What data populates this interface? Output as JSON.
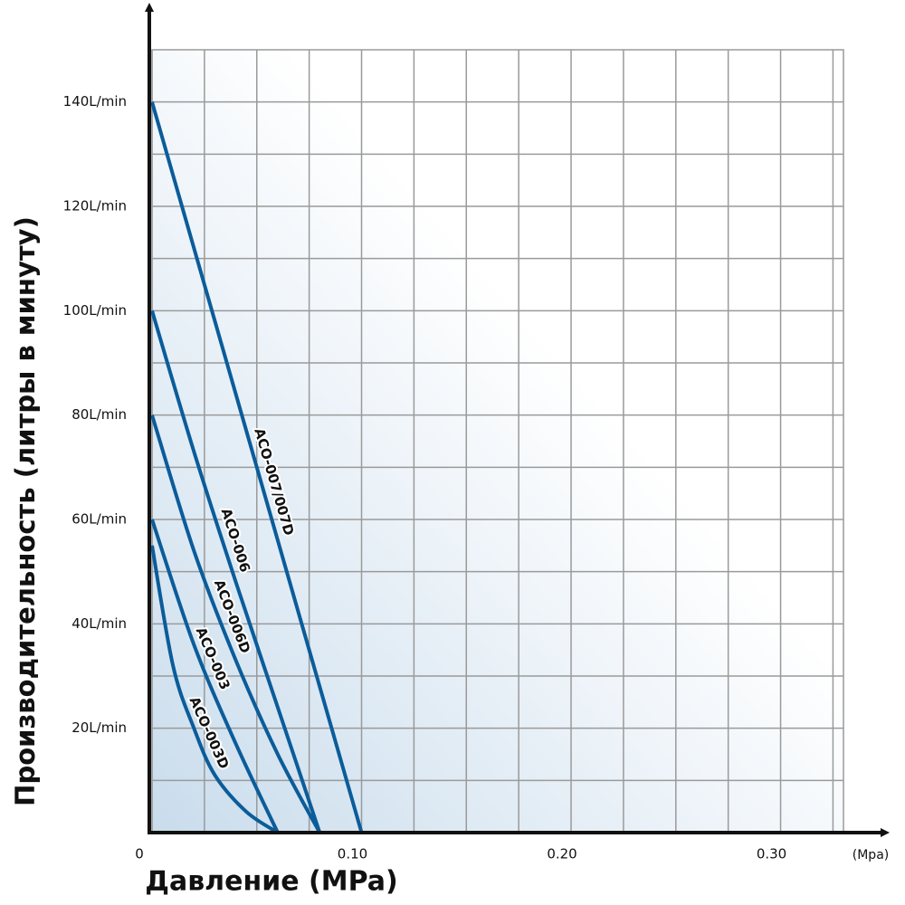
{
  "chart_data": {
    "type": "line",
    "x_label": "Давление (MPa)",
    "y_label": "Производительность (литры в минуту)",
    "x_unit": "(Mpa)",
    "xlim": [
      0,
      0.33
    ],
    "ylim": [
      0,
      150
    ],
    "xticks": [
      0,
      {
        "value": 0.1,
        "label": "0.10"
      },
      {
        "value": 0.2,
        "label": "0.20"
      },
      {
        "value": 0.3,
        "label": "0.30"
      }
    ],
    "yticks": [
      {
        "value": 20,
        "label": "20L/min"
      },
      {
        "value": 40,
        "label": "40L/min"
      },
      {
        "value": 60,
        "label": "60L/min"
      },
      {
        "value": 80,
        "label": "80L/min"
      },
      {
        "value": 100,
        "label": "100L/min"
      },
      {
        "value": 120,
        "label": "120L/min"
      },
      {
        "value": 140,
        "label": "140L/min"
      }
    ],
    "grid": true,
    "series": [
      {
        "name": "ACO-007/007D",
        "color": "#0b5c9a",
        "x": [
          0,
          0.1
        ],
        "values": [
          140,
          0
        ]
      },
      {
        "name": "ACO-006",
        "color": "#0b5c9a",
        "x": [
          0,
          0.02,
          0.04,
          0.06,
          0.08
        ],
        "values": [
          100,
          73,
          48,
          24,
          0
        ]
      },
      {
        "name": "ACO-006D",
        "color": "#0b5c9a",
        "x": [
          0,
          0.02,
          0.04,
          0.06,
          0.08
        ],
        "values": [
          80,
          54,
          33,
          15,
          0
        ]
      },
      {
        "name": "ACO-003",
        "color": "#0b5c9a",
        "x": [
          0,
          0.02,
          0.04,
          0.06
        ],
        "values": [
          60,
          36,
          17,
          0
        ]
      },
      {
        "name": "ACO-003D",
        "color": "#0b5c9a",
        "x": [
          0,
          0.01,
          0.02,
          0.03,
          0.045,
          0.06
        ],
        "values": [
          55,
          32,
          20,
          11,
          4,
          0
        ]
      }
    ]
  }
}
